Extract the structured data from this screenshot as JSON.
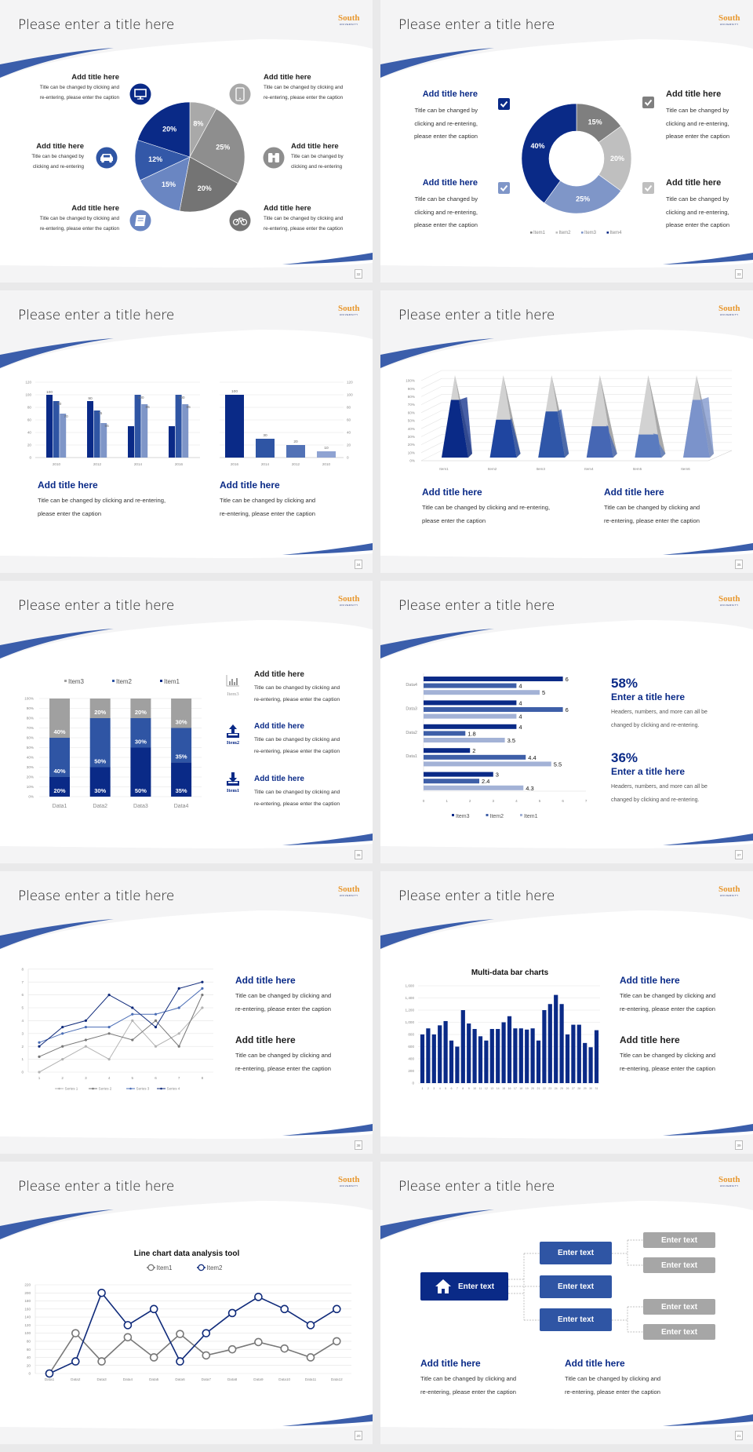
{
  "common": {
    "logo": "South",
    "logo_sub": "UNIVERSITY"
  },
  "slides": [
    {
      "page": "32",
      "title": "Please enter a title here",
      "blocks": [
        {
          "title": "Add title here",
          "lines": [
            "Title can be changed by clicking and",
            "re-entering, please enter the caption"
          ]
        },
        {
          "title": "Add title here",
          "lines": [
            "Title can be changed by",
            "clicking and re-entering"
          ]
        },
        {
          "title": "Add title here",
          "lines": [
            "Title can be changed by clicking and",
            "re-entering, please enter the caption"
          ]
        },
        {
          "title": "Add title here",
          "lines": [
            "Title can be changed by clicking and",
            "re-entering, please enter the caption"
          ]
        },
        {
          "title": "Add title here",
          "lines": [
            "Title can be changed by",
            "clicking and re-entering"
          ]
        },
        {
          "title": "Add title here",
          "lines": [
            "Title can be changed by clicking and",
            "re-entering, please enter the caption"
          ]
        }
      ],
      "icons": [
        "monitor-icon",
        "car-icon",
        "book-icon",
        "phone-icon",
        "binoculars-icon",
        "bicycle-icon"
      ]
    },
    {
      "page": "33",
      "title": "Please enter a title here",
      "blocks": [
        {
          "title": "Add title here",
          "lines": [
            "Title can be changed by",
            "clicking and re-entering,",
            "please enter the caption"
          ]
        },
        {
          "title": "Add title here",
          "lines": [
            "Title can be changed by",
            "clicking and re-entering,",
            "please enter the caption"
          ]
        },
        {
          "title": "Add title here",
          "lines": [
            "Title can be changed by",
            "clicking and re-entering,",
            "please enter the caption"
          ]
        },
        {
          "title": "Add title here",
          "lines": [
            "Title can be changed by",
            "clicking and re-entering,",
            "please enter the caption"
          ]
        }
      ],
      "icons": [
        "checkbox-icon"
      ]
    },
    {
      "page": "34",
      "title": "Please enter a title here",
      "blocks": [
        {
          "title": "Add title here",
          "lines": [
            "Title can be changed by clicking and re-entering,",
            "please enter the caption"
          ]
        },
        {
          "title": "Add title here",
          "lines": [
            "Title can be changed by clicking and",
            "re-entering, please enter the caption"
          ]
        }
      ]
    },
    {
      "page": "35",
      "title": "Please enter a title here",
      "blocks": [
        {
          "title": "Add title here",
          "lines": [
            "Title can be changed by clicking and re-entering,",
            "please enter the caption"
          ]
        },
        {
          "title": "Add title here",
          "lines": [
            "Title can be changed by clicking and",
            "re-entering, please enter the caption"
          ]
        }
      ]
    },
    {
      "page": "36",
      "title": "Please enter a title here",
      "blocks": [
        {
          "title": "Add title here",
          "lines": [
            "Title can be changed by clicking and",
            "re-entering, please enter the caption"
          ]
        },
        {
          "title": "Add title here",
          "lines": [
            "Title can be changed by clicking and",
            "re-entering, please enter the caption"
          ]
        },
        {
          "title": "Add title here",
          "lines": [
            "Title can be changed by clicking and",
            "re-entering, please enter the caption"
          ]
        }
      ],
      "icon_labels": [
        "Item3",
        "Item2",
        "Item1"
      ],
      "icons": [
        "bar-chart-icon",
        "upload-icon",
        "download-icon"
      ]
    },
    {
      "page": "37",
      "title": "Please enter a title here",
      "blocks": [
        {
          "value": "58%",
          "title": "Enter a title here",
          "lines": [
            "Headers, numbers, and more can all be",
            "changed by clicking and re-entering."
          ]
        },
        {
          "value": "36%",
          "title": "Enter a title here",
          "lines": [
            "Headers, numbers, and more can all be",
            "changed by clicking and re-entering."
          ]
        }
      ]
    },
    {
      "page": "38",
      "title": "Please enter a title here",
      "blocks": [
        {
          "title": "Add title here",
          "lines": [
            "Title can be changed by clicking and",
            "re-entering, please enter the caption"
          ]
        },
        {
          "title": "Add title here",
          "lines": [
            "Title can be changed by clicking and",
            "re-entering, please enter the caption"
          ]
        }
      ]
    },
    {
      "page": "39",
      "title": "Please enter a title here",
      "blocks": [
        {
          "title": "Add title here",
          "lines": [
            "Title can be changed by clicking and",
            "re-entering, please enter the caption"
          ]
        },
        {
          "title": "Add title here",
          "lines": [
            "Title can be changed by clicking and",
            "re-entering, please enter the caption"
          ]
        }
      ]
    },
    {
      "page": "20",
      "title": "Please enter a title here",
      "blocks": []
    },
    {
      "page": "21",
      "title": "Please enter a title here",
      "blocks": [
        {
          "title": "Add title here",
          "lines": [
            "Title can be changed by clicking and",
            "re-entering, please enter the caption"
          ]
        },
        {
          "title": "Add title here",
          "lines": [
            "Title can be changed by clicking and",
            "re-entering, please enter the caption"
          ]
        }
      ],
      "diagram": {
        "root": "Enter text",
        "mid": [
          "Enter text",
          "Enter text",
          "Enter text"
        ],
        "leaves": [
          "Enter text",
          "Enter text",
          "Enter text",
          "Enter text"
        ],
        "root_icon": "home-icon"
      }
    }
  ],
  "colors": {
    "navy": "#0a2a87",
    "blue": "#2f55a4",
    "accent_swoosh": "#3b5eab",
    "logo": "#e8982f",
    "gray": "#a6a6a6"
  },
  "chart_data": [
    {
      "type": "pie",
      "values": [
        8,
        25,
        20,
        15,
        12,
        20
      ],
      "labels": [
        "8%",
        "25%",
        "20%",
        "15%",
        "12%",
        "20%"
      ],
      "colors": [
        "#a9a9a9",
        "#8e8e8e",
        "#747474",
        "#6a86c2",
        "#3358a8",
        "#0a2a87"
      ]
    },
    {
      "type": "pie",
      "donut": true,
      "categories": [
        "Item1",
        "Item2",
        "Item3",
        "Item4"
      ],
      "values": [
        15,
        20,
        25,
        40
      ],
      "labels": [
        "15%",
        "20%",
        "25%",
        "40%"
      ],
      "colors": [
        "#7f7f7f",
        "#bfbfbf",
        "#7f96c8",
        "#0a2a87"
      ],
      "legend": "bottom"
    },
    {
      "type": "bar",
      "categories": [
        "2010",
        "2012",
        "2014",
        "2016"
      ],
      "series": [
        {
          "values": [
            100,
            90,
            50,
            50
          ],
          "labels": [
            100,
            90,
            null,
            null
          ]
        },
        {
          "values": [
            90,
            75,
            100,
            100
          ],
          "labels": [
            90,
            75,
            100,
            100
          ]
        },
        {
          "values": [
            70,
            55,
            85,
            85
          ],
          "labels": [
            70,
            55,
            85,
            85
          ]
        }
      ],
      "ylim": [
        0,
        120
      ],
      "yticks": [
        "0",
        "20",
        "40",
        "60",
        "80",
        "100",
        "120"
      ],
      "colors": [
        "#0a2a87",
        "#2f55a4",
        "#7f96c8"
      ],
      "grid": true
    },
    {
      "type": "bar",
      "categories": [
        "2016",
        "2014",
        "2012",
        "2010"
      ],
      "values": [
        100,
        30,
        20,
        10
      ],
      "ylim": [
        0,
        120
      ],
      "yticks": [
        "0",
        "20",
        "40",
        "60",
        "80",
        "100",
        "120"
      ],
      "colors": [
        "#0a2a87",
        "#2f55a4",
        "#5272b6",
        "#8fa3d2"
      ],
      "axis": "right",
      "grid": true
    },
    {
      "type": "bar",
      "style": "3d-pyramid",
      "categories": [
        "Item1",
        "Item2",
        "Item3",
        "Item4",
        "Item5",
        "Item6"
      ],
      "values": [
        70,
        46,
        56,
        38,
        28,
        70
      ],
      "ylim": [
        0,
        100
      ],
      "yticks": [
        "0%",
        "10%",
        "20%",
        "30%",
        "40%",
        "50%",
        "60%",
        "70%",
        "80%",
        "90%",
        "100%"
      ],
      "colors": [
        "#0a2a87",
        "#1f45a0",
        "#2f56a8",
        "#4667b4",
        "#5a7bbf",
        "#7b93cb"
      ],
      "grid": true
    },
    {
      "type": "bar",
      "stacked": "100%",
      "categories": [
        "Data1",
        "Data2",
        "Data3",
        "Data4"
      ],
      "series": [
        {
          "name": "Item1",
          "values": [
            20,
            30,
            50,
            35
          ],
          "labels": [
            "20%",
            "30%",
            "50%",
            "35%"
          ],
          "color": "#0a2a87"
        },
        {
          "name": "Item2",
          "values": [
            40,
            50,
            30,
            35
          ],
          "labels": [
            "40%",
            "50%",
            "30%",
            "35%"
          ],
          "color": "#2f55a4"
        },
        {
          "name": "Item3",
          "values": [
            40,
            20,
            20,
            30
          ],
          "labels": [
            "40%",
            "20%",
            "20%",
            "30%"
          ],
          "color": "#a0a0a0"
        }
      ],
      "yticks": [
        "0%",
        "10%",
        "20%",
        "30%",
        "40%",
        "50%",
        "60%",
        "70%",
        "80%",
        "90%",
        "100%"
      ],
      "legend": "top",
      "grid": true
    },
    {
      "type": "bar",
      "orientation": "horizontal",
      "categories": [
        "",
        "Data1",
        "Data2",
        "Data3",
        "Data4"
      ],
      "series": [
        {
          "name": "Item3",
          "values": [
            3,
            2,
            4,
            4,
            6
          ],
          "color": "#0a2a87"
        },
        {
          "name": "Item2",
          "values": [
            2.4,
            4.4,
            1.8,
            6,
            4
          ],
          "color": "#3e5fa8"
        },
        {
          "name": "Item1",
          "values": [
            4.3,
            5.5,
            3.5,
            4,
            5
          ],
          "color": "#a3b2d6"
        }
      ],
      "xlim": [
        0,
        7
      ],
      "xticks": [
        "0",
        "1",
        "2",
        "3",
        "4",
        "5",
        "6",
        "7"
      ],
      "legend": "bottom"
    },
    {
      "type": "line",
      "x": [
        "1",
        "2",
        "3",
        "4",
        "5",
        "6",
        "7",
        "8"
      ],
      "yticks": [
        "0",
        "1",
        "2",
        "3",
        "4",
        "5",
        "6",
        "7",
        "8"
      ],
      "series": [
        {
          "name": "Series 1",
          "values": [
            0,
            1,
            2,
            1,
            4,
            2,
            3,
            5
          ],
          "color": "#b3b3b3"
        },
        {
          "name": "Series 2",
          "values": [
            1.2,
            2,
            2.5,
            3,
            2.5,
            4,
            2,
            6
          ],
          "color": "#777777"
        },
        {
          "name": "Series 3",
          "values": [
            2.3,
            3,
            3.5,
            3.5,
            4.5,
            4.5,
            5,
            6.5
          ],
          "color": "#4a6db5"
        },
        {
          "name": "Series 4",
          "values": [
            2,
            3.5,
            4,
            6,
            5,
            3.5,
            6.5,
            7
          ],
          "color": "#0f2a7a"
        }
      ],
      "ylim": [
        0,
        8
      ],
      "legend": "bottom",
      "grid": true
    },
    {
      "type": "bar",
      "title": "Multi-data bar charts",
      "x": [
        "1",
        "2",
        "3",
        "4",
        "5",
        "6",
        "7",
        "8",
        "9",
        "10",
        "11",
        "12",
        "13",
        "14",
        "15",
        "16",
        "17",
        "18",
        "19",
        "20",
        "21",
        "22",
        "23",
        "24",
        "25",
        "26",
        "27",
        "28",
        "29",
        "30",
        "31"
      ],
      "values": [
        800,
        900,
        800,
        950,
        1020,
        700,
        600,
        1200,
        980,
        890,
        770,
        700,
        890,
        890,
        1000,
        1100,
        900,
        900,
        880,
        900,
        700,
        1200,
        1300,
        1450,
        1300,
        800,
        960,
        960,
        660,
        590,
        870
      ],
      "ylim": [
        0,
        1600
      ],
      "yticks": [
        "0",
        "200",
        "400",
        "600",
        "800",
        "1,000",
        "1,200",
        "1,400",
        "1,600"
      ],
      "color": "#0a2a87",
      "grid": true
    },
    {
      "type": "line",
      "title": "Line chart data analysis tool",
      "x": [
        "Data1",
        "Data2",
        "Data3",
        "Data4",
        "Data5",
        "Data6",
        "Data7",
        "Data8",
        "Data9",
        "Data10",
        "Data11",
        "Data12"
      ],
      "yticks": [
        "0",
        "20",
        "40",
        "60",
        "80",
        "100",
        "120",
        "140",
        "160",
        "180",
        "200",
        "220"
      ],
      "ylim": [
        0,
        220
      ],
      "series": [
        {
          "name": "Item1",
          "values": [
            0,
            100,
            30,
            90,
            40,
            98,
            45,
            60,
            78,
            62,
            40,
            80
          ],
          "color": "#777777"
        },
        {
          "name": "Item2",
          "values": [
            0,
            30,
            200,
            120,
            160,
            30,
            100,
            150,
            190,
            160,
            120,
            160
          ],
          "color": "#0f2a7a"
        }
      ],
      "legend": "top",
      "grid": true
    }
  ]
}
